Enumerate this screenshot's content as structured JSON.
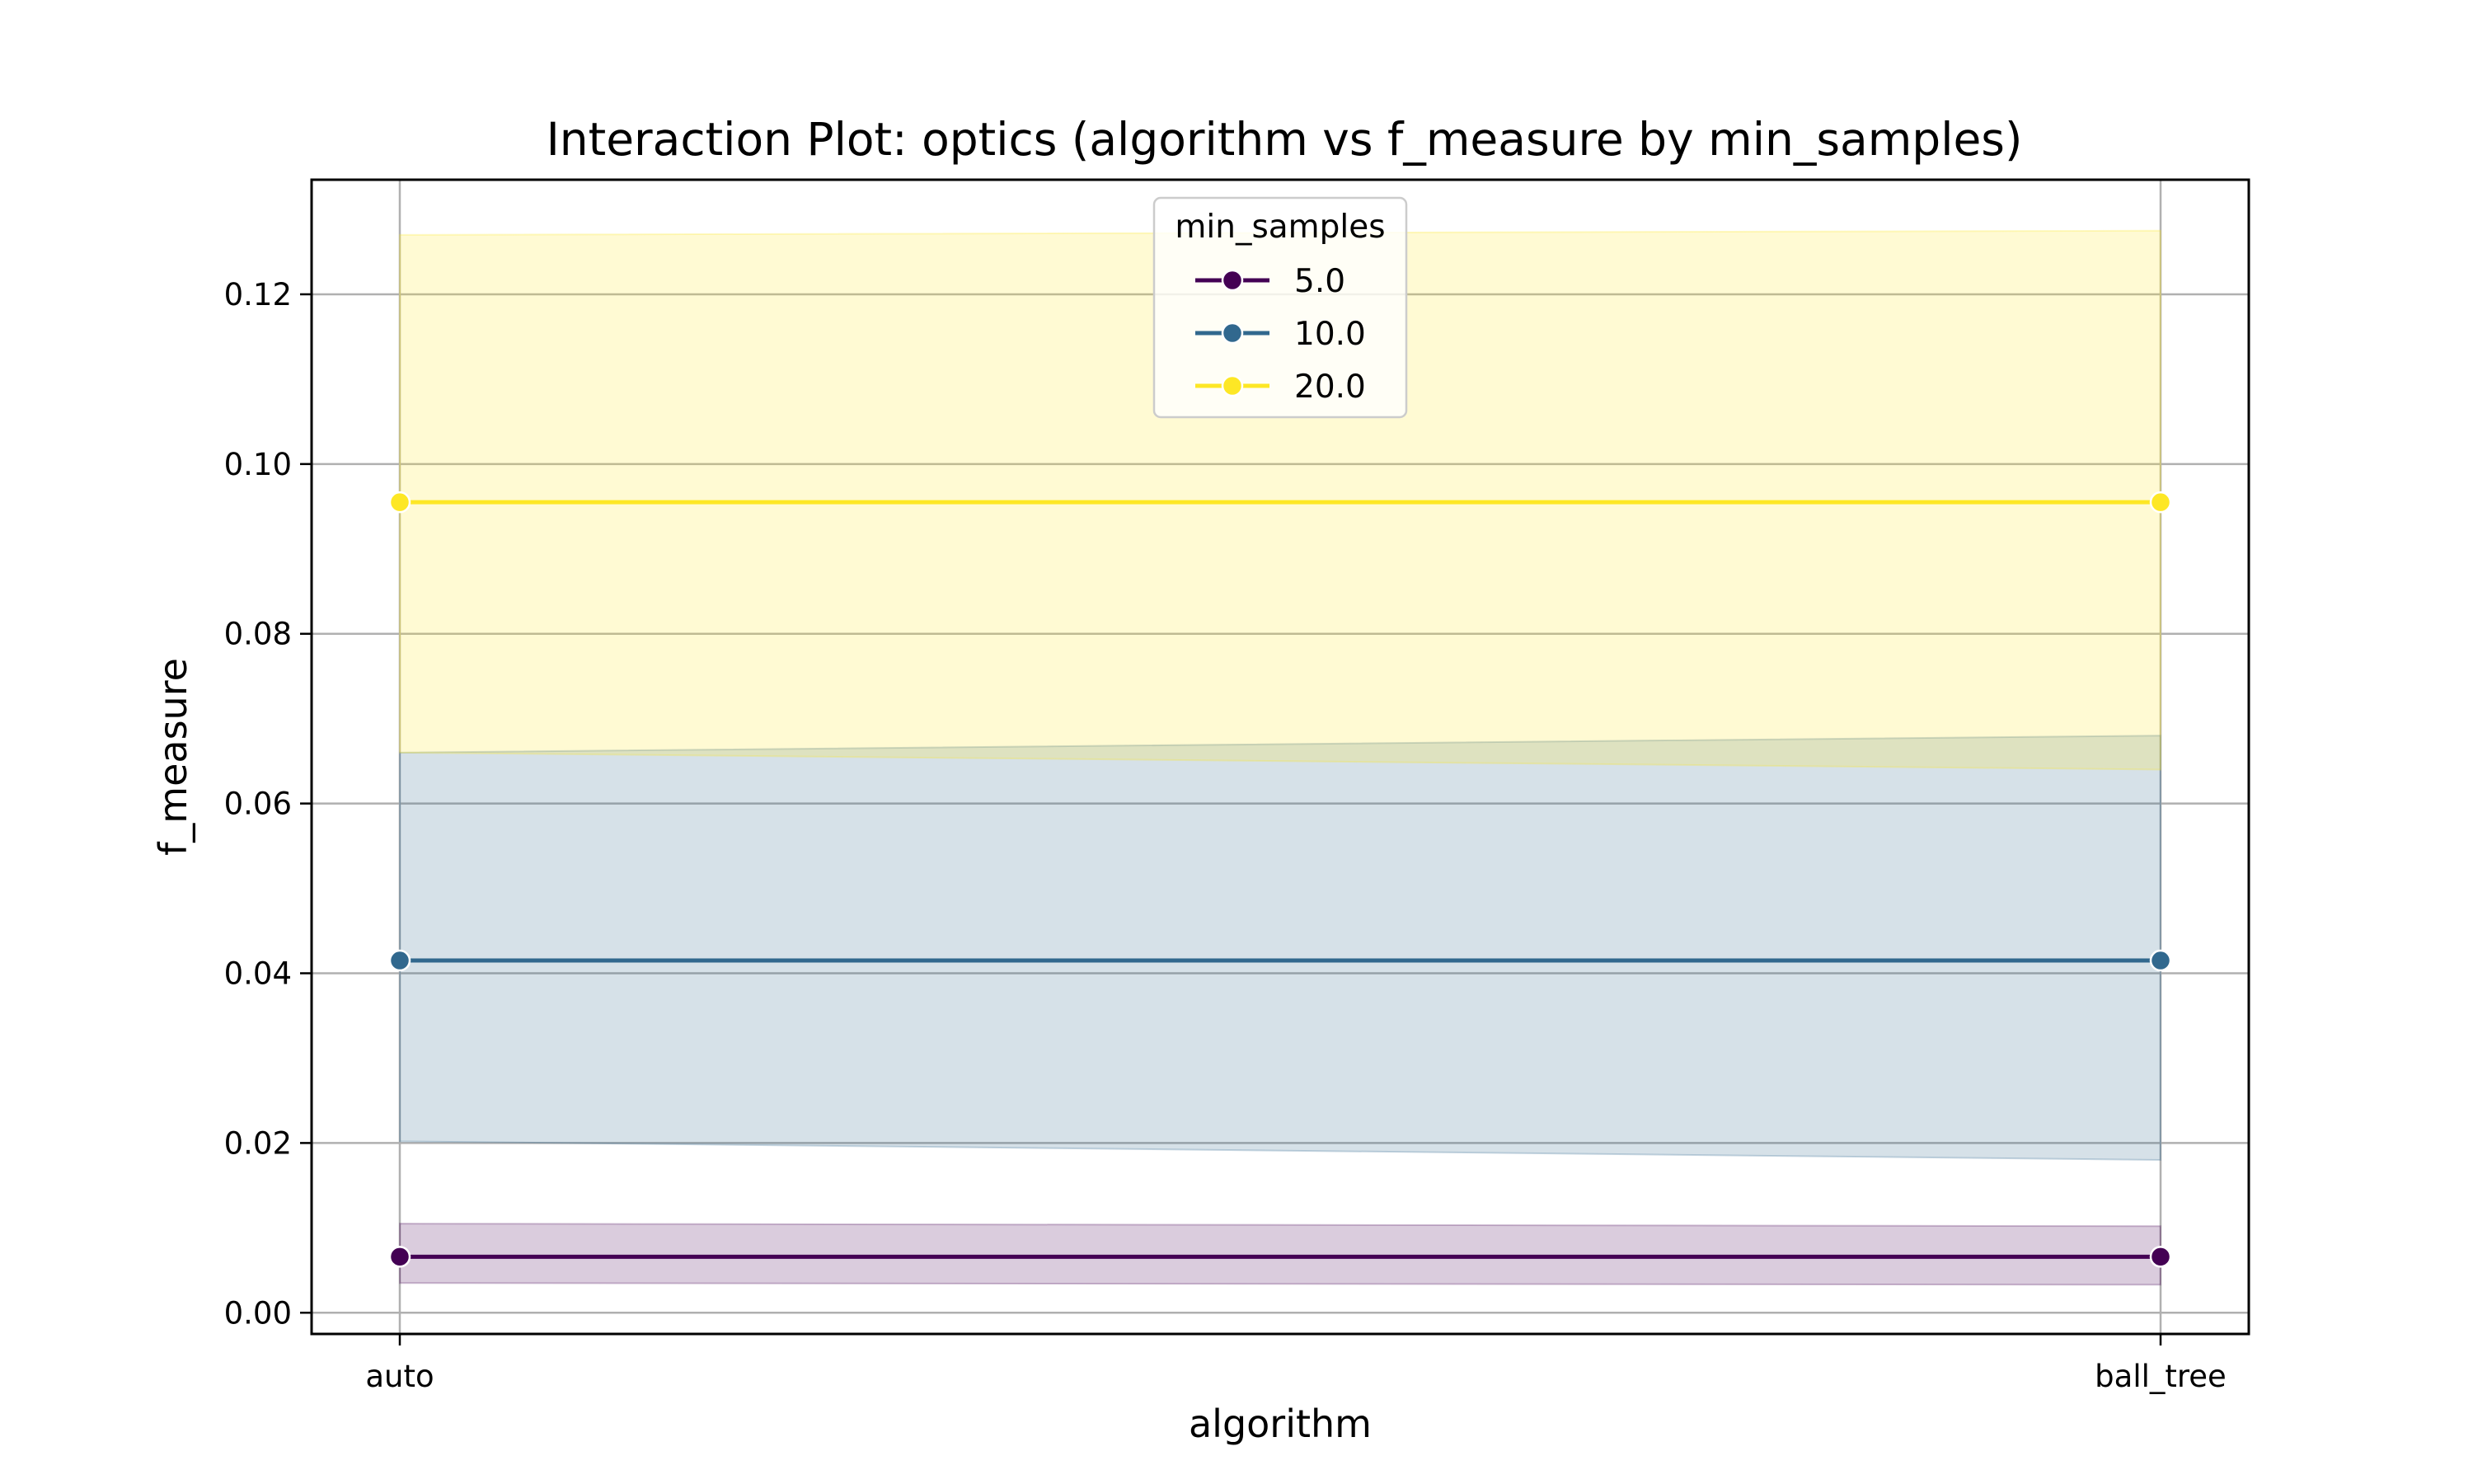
{
  "chart_data": {
    "type": "line",
    "title": "Interaction Plot: optics (algorithm vs f_measure by min_samples)",
    "xlabel": "algorithm",
    "ylabel": "f_measure",
    "categories": [
      "auto",
      "ball_tree"
    ],
    "ylim": [
      -0.0025,
      0.1335
    ],
    "yticks": [
      0.0,
      0.02,
      0.04,
      0.06,
      0.08,
      0.1,
      0.12
    ],
    "ytick_labels": [
      "0.00",
      "0.02",
      "0.04",
      "0.06",
      "0.08",
      "0.10",
      "0.12"
    ],
    "grid": true,
    "legend": {
      "title": "min_samples",
      "placement": "upper center"
    },
    "series": [
      {
        "name": "5.0",
        "color": "#440154",
        "values": [
          0.0066,
          0.0066
        ],
        "ci_low": [
          0.0035,
          0.0033
        ],
        "ci_high": [
          0.0105,
          0.0102
        ]
      },
      {
        "name": "10.0",
        "color": "#31688e",
        "values": [
          0.0415,
          0.0415
        ],
        "ci_low": [
          0.0202,
          0.018
        ],
        "ci_high": [
          0.066,
          0.068
        ]
      },
      {
        "name": "20.0",
        "color": "#fde725",
        "values": [
          0.0955,
          0.0955
        ],
        "ci_low": [
          0.066,
          0.064
        ],
        "ci_high": [
          0.127,
          0.1275
        ]
      }
    ]
  }
}
